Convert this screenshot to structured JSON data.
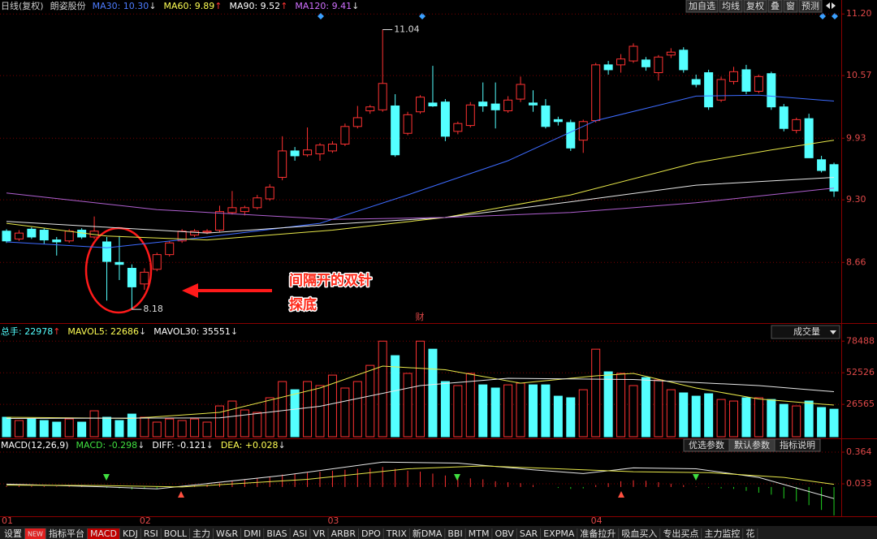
{
  "header": {
    "period": "日线(复权)",
    "name": "朗姿股份",
    "indicators": [
      {
        "text": "MA30: 10.30",
        "arrow": "↓",
        "color": "#4d7cff",
        "arrow_color": "#dddddd"
      },
      {
        "text": "MA60: 9.89",
        "arrow": "↑",
        "color": "#ffff54",
        "arrow_color": "#ff3232"
      },
      {
        "text": "MA90: 9.52",
        "arrow": "↑",
        "color": "#ffffff",
        "arrow_color": "#ff3232"
      },
      {
        "text": "MA120: 9.41",
        "arrow": "↓",
        "color": "#d070ff",
        "arrow_color": "#dddddd"
      }
    ],
    "buttons": [
      "加自选",
      "均线",
      "复权",
      "叠",
      "窗",
      "预测"
    ]
  },
  "chart_data": [
    {
      "type": "candlestick",
      "categories": [
        "01",
        null,
        null,
        null,
        null,
        null,
        null,
        null,
        null,
        null,
        null,
        "02",
        null,
        null,
        null,
        null,
        null,
        null,
        null,
        null,
        null,
        null,
        null,
        null,
        null,
        null,
        "03",
        null,
        null,
        null,
        null,
        null,
        null,
        null,
        null,
        null,
        null,
        null,
        null,
        null,
        null,
        null,
        null,
        null,
        null,
        null,
        null,
        "04",
        null,
        null,
        null,
        null,
        null,
        null,
        null,
        null,
        null,
        null,
        null,
        null,
        null,
        null,
        null,
        null,
        null,
        null,
        null
      ],
      "open": [
        8.98,
        8.9,
        9.0,
        8.99,
        8.89,
        8.88,
        8.99,
        8.92,
        8.87,
        8.66,
        8.6,
        8.44,
        8.59,
        8.74,
        8.88,
        8.94,
        8.97,
        8.99,
        9.17,
        9.18,
        9.22,
        9.31,
        9.53,
        9.8,
        9.76,
        9.77,
        9.8,
        9.87,
        10.05,
        10.21,
        10.22,
        10.26,
        9.98,
        10.2,
        10.29,
        10.3,
        10.0,
        10.06,
        10.3,
        10.28,
        10.21,
        10.33,
        10.29,
        10.26,
        10.12,
        10.09,
        9.91,
        10.11,
        10.68,
        10.68,
        10.72,
        10.73,
        10.6,
        10.78,
        10.83,
        10.53,
        10.6,
        10.32,
        10.51,
        10.63,
        10.41,
        10.59,
        10.25,
        10.01,
        10.13,
        9.71,
        9.66
      ],
      "high": [
        9.0,
        8.99,
        9.02,
        9.01,
        8.92,
        9.0,
        9.01,
        9.13,
        8.92,
        8.93,
        8.64,
        8.6,
        8.76,
        8.88,
        9.0,
        9.0,
        9.0,
        9.24,
        9.39,
        9.24,
        9.35,
        9.46,
        9.95,
        9.84,
        10.04,
        9.88,
        9.9,
        10.08,
        10.26,
        10.27,
        11.04,
        10.38,
        10.2,
        10.37,
        10.67,
        10.33,
        10.1,
        10.3,
        10.5,
        10.5,
        10.36,
        10.56,
        10.42,
        10.33,
        10.15,
        10.12,
        10.12,
        10.7,
        10.72,
        10.79,
        10.9,
        10.76,
        10.78,
        10.85,
        10.86,
        10.58,
        10.63,
        10.56,
        10.66,
        10.68,
        10.58,
        10.61,
        10.28,
        10.14,
        10.18,
        9.75,
        9.68
      ],
      "low": [
        8.86,
        8.88,
        8.9,
        8.85,
        8.73,
        8.86,
        8.9,
        8.9,
        8.27,
        8.48,
        8.18,
        8.38,
        8.57,
        8.72,
        8.86,
        8.92,
        8.95,
        8.97,
        9.15,
        9.14,
        9.2,
        9.29,
        9.5,
        9.7,
        9.74,
        9.7,
        9.78,
        9.85,
        10.03,
        10.18,
        10.2,
        9.74,
        9.96,
        10.18,
        10.25,
        9.9,
        9.97,
        10.04,
        10.2,
        10.03,
        10.19,
        10.3,
        10.2,
        10.03,
        10.06,
        9.8,
        9.78,
        10.09,
        10.58,
        10.6,
        10.7,
        10.62,
        10.52,
        10.75,
        10.6,
        10.45,
        10.22,
        10.3,
        10.48,
        10.38,
        10.39,
        10.22,
        10.0,
        9.98,
        9.73,
        9.58,
        9.33
      ],
      "close": [
        8.88,
        8.96,
        8.92,
        8.89,
        8.87,
        8.98,
        8.92,
        8.98,
        8.67,
        8.64,
        8.41,
        8.56,
        8.74,
        8.86,
        8.98,
        8.98,
        8.98,
        9.18,
        9.22,
        9.22,
        9.32,
        9.43,
        9.8,
        9.75,
        9.81,
        9.86,
        9.87,
        10.05,
        10.14,
        10.25,
        10.49,
        9.76,
        10.17,
        10.35,
        10.26,
        9.95,
        10.08,
        10.27,
        10.26,
        10.22,
        10.32,
        10.48,
        10.27,
        10.05,
        10.1,
        9.83,
        10.1,
        10.68,
        10.63,
        10.74,
        10.87,
        10.66,
        10.76,
        10.81,
        10.63,
        10.48,
        10.25,
        10.53,
        10.61,
        10.41,
        10.56,
        10.25,
        10.03,
        10.12,
        9.73,
        9.6,
        9.39
      ],
      "up_color": "#ff3232",
      "down_color": "#54ffff",
      "ylim": [
        8.04,
        11.26
      ],
      "yticks": [
        {
          "value": 11.2,
          "label": "11.20"
        },
        {
          "value": 10.57,
          "label": "10.57"
        },
        {
          "value": 9.93,
          "label": "9.93"
        },
        {
          "value": 9.3,
          "label": "9.30"
        },
        {
          "value": 8.66,
          "label": "8.66"
        }
      ],
      "grid": true,
      "lines": [
        {
          "color": "#3d6bff",
          "x": [
            0,
            8,
            16,
            25,
            32,
            40,
            47,
            55,
            60,
            66
          ],
          "values": [
            8.87,
            8.81,
            8.92,
            9.06,
            9.35,
            9.7,
            10.11,
            10.36,
            10.37,
            10.31
          ]
        },
        {
          "color": "#e8e84a",
          "x": [
            0,
            8,
            16,
            26,
            35,
            45,
            55,
            61,
            66
          ],
          "values": [
            9.06,
            8.93,
            8.89,
            8.99,
            9.12,
            9.35,
            9.68,
            9.81,
            9.91
          ]
        },
        {
          "color": "#e8e8e8",
          "x": [
            0,
            16,
            26,
            35,
            45,
            55,
            66
          ],
          "values": [
            9.08,
            8.96,
            9.05,
            9.12,
            9.28,
            9.45,
            9.53
          ]
        },
        {
          "color": "#b060d0",
          "x": [
            0,
            12,
            26,
            35,
            45,
            55,
            66
          ],
          "values": [
            9.37,
            9.2,
            9.1,
            9.12,
            9.17,
            9.27,
            9.42
          ]
        }
      ],
      "annotations": [
        {
          "text": "11.04",
          "index": 30,
          "at": "high"
        },
        {
          "text": "8.18",
          "index": 10,
          "at": "low"
        }
      ],
      "events": [
        {
          "text": "财",
          "index": 33
        }
      ],
      "callout": [
        "间隔开的双针",
        "探底"
      ]
    },
    {
      "type": "bar",
      "header": [
        {
          "text": "总手: 22978",
          "arrow": "↑",
          "color": "#54ffff",
          "arrow_color": "#ff3232"
        },
        {
          "text": "MAVOL5: 22686",
          "arrow": "↓",
          "color": "#ffff54",
          "arrow_color": "#dddddd"
        },
        {
          "text": "MAVOL30: 35551",
          "arrow": "↓",
          "color": "#ffffff",
          "arrow_color": "#dddddd"
        }
      ],
      "selector": "成交量",
      "values": [
        16000,
        13300,
        14600,
        13300,
        12000,
        14600,
        12000,
        21300,
        16000,
        13300,
        18600,
        16000,
        12000,
        14600,
        13300,
        14600,
        12000,
        25300,
        29300,
        22000,
        20000,
        32000,
        45300,
        38600,
        45300,
        42000,
        50600,
        40000,
        45300,
        58600,
        78500,
        66600,
        52000,
        78500,
        71900,
        45300,
        42000,
        52000,
        42600,
        40000,
        42600,
        44000,
        42600,
        42600,
        33300,
        32000,
        38600,
        71900,
        53300,
        52000,
        42000,
        48600,
        46600,
        38600,
        36000,
        33300,
        35300,
        30600,
        29300,
        32000,
        32000,
        30600,
        26600,
        25300,
        29300,
        24000,
        22600
      ],
      "ylim": [
        0,
        84000
      ],
      "yticks": [
        78488,
        52526,
        26565
      ],
      "grid": true,
      "lines": [
        {
          "color": "#e8e84a",
          "x": [
            0,
            10,
            17,
            25,
            30,
            35,
            41,
            47,
            50,
            55,
            60,
            66
          ],
          "values": [
            16000,
            15000,
            20000,
            40000,
            58000,
            55000,
            44000,
            50000,
            52000,
            40000,
            31000,
            26000
          ]
        },
        {
          "color": "#e8e8e8",
          "x": [
            0,
            17,
            25,
            33,
            40,
            50,
            60,
            66
          ],
          "values": [
            15000,
            15500,
            25000,
            42000,
            48000,
            47000,
            42000,
            37000
          ]
        }
      ]
    },
    {
      "type": "macd",
      "header": [
        {
          "text": "MACD(12,26,9)",
          "arrow": "",
          "color": "#ffffff",
          "arrow_color": "#ffffff"
        },
        {
          "text": "MACD: -0.298",
          "arrow": "↓",
          "color": "#40e040",
          "arrow_color": "#dddddd"
        },
        {
          "text": "DIFF: -0.121",
          "arrow": "↓",
          "color": "#ffffff",
          "arrow_color": "#dddddd"
        },
        {
          "text": "DEA: +0.028",
          "arrow": "↓",
          "color": "#ffff54",
          "arrow_color": "#dddddd"
        }
      ],
      "buttons": [
        "优选参数",
        "默认参数",
        "指标说明"
      ],
      "selected_button": 1,
      "values": [
        0.01,
        0.012,
        0.01,
        0.008,
        0.005,
        0.006,
        0.004,
        0.003,
        -0.01,
        -0.015,
        -0.025,
        -0.02,
        -0.015,
        -0.008,
        0.005,
        0.015,
        0.025,
        0.04,
        0.06,
        0.075,
        0.09,
        0.105,
        0.13,
        0.14,
        0.15,
        0.16,
        0.17,
        0.18,
        0.19,
        0.195,
        0.21,
        0.19,
        0.17,
        0.16,
        0.14,
        0.12,
        0.1,
        0.09,
        0.08,
        0.06,
        0.05,
        0.04,
        0.02,
        0.0,
        -0.01,
        -0.02,
        -0.015,
        0.02,
        0.04,
        0.06,
        0.07,
        0.065,
        0.05,
        0.035,
        0.02,
        0.005,
        -0.01,
        -0.015,
        -0.02,
        -0.04,
        -0.06,
        -0.08,
        -0.12,
        -0.15,
        -0.19,
        -0.24,
        -0.298
      ],
      "up_color": "#ff3232",
      "down_color": "#20d020",
      "ylim": [
        -0.306,
        0.466
      ],
      "yticks": [
        0.364,
        0.033
      ],
      "grid": true,
      "lines": [
        {
          "color": "#e8e8e8",
          "x": [
            0,
            8,
            12,
            22,
            30,
            36,
            42,
            46,
            50,
            55,
            60,
            66
          ],
          "values": [
            0.03,
            0.0,
            -0.02,
            0.12,
            0.26,
            0.25,
            0.18,
            0.14,
            0.2,
            0.19,
            0.1,
            -0.121
          ]
        },
        {
          "color": "#e8e84a",
          "x": [
            0,
            8,
            14,
            24,
            32,
            38,
            44,
            50,
            56,
            62,
            66
          ],
          "values": [
            0.02,
            0.015,
            0.0,
            0.08,
            0.19,
            0.22,
            0.19,
            0.16,
            0.15,
            0.1,
            0.028
          ]
        }
      ]
    }
  ],
  "tabs": [
    "设置",
    "NEW",
    "指标平台",
    "MACD",
    "KDJ",
    "RSI",
    "BOLL",
    "主力",
    "W&R",
    "DMI",
    "BIAS",
    "ASI",
    "VR",
    "ARBR",
    "DPO",
    "TRIX",
    "新DMA",
    "BBI",
    "MTM",
    "OBV",
    "SAR",
    "EXPMA",
    "准备拉升",
    "吸血买入",
    "专出买点",
    "主力监控",
    "花"
  ],
  "selected_tab": 3,
  "badge_tab": 1
}
